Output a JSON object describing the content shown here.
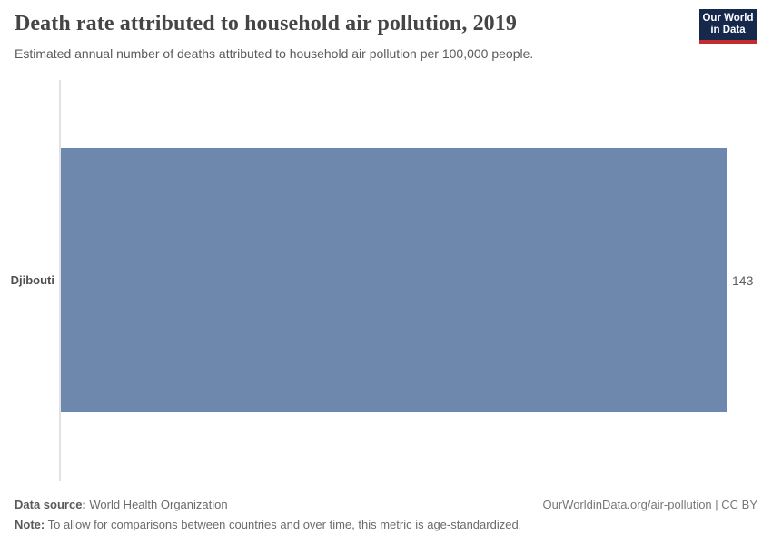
{
  "header": {
    "title": "Death rate attributed to household air pollution, 2019",
    "subtitle": "Estimated annual number of deaths attributed to household air pollution per 100,000 people.",
    "logo": {
      "line1": "Our World",
      "line2": "in Data"
    }
  },
  "chart_data": {
    "type": "bar",
    "orientation": "horizontal",
    "title": "Death rate attributed to household air pollution, 2019",
    "subtitle": "Estimated annual number of deaths attributed to household air pollution per 100,000 people.",
    "categories": [
      "Djibouti"
    ],
    "values": [
      143
    ],
    "xlabel": "",
    "ylabel": "",
    "xlim": [
      0,
      143
    ],
    "grid": false,
    "legend": false,
    "bar_color": "#6e87ad",
    "value_labels": [
      "143"
    ]
  },
  "footer": {
    "data_source_label": "Data source:",
    "data_source_value": " World Health Organization",
    "note_label": "Note:",
    "note_value": " To allow for comparisons between countries and over time, this metric is age-standardized.",
    "link": "OurWorldinData.org/air-pollution | CC BY"
  },
  "colors": {
    "bar": "#6e87ad",
    "logo_bg": "#16294d",
    "logo_red": "#c22d2d",
    "axis_line": "#e2e2e2"
  }
}
